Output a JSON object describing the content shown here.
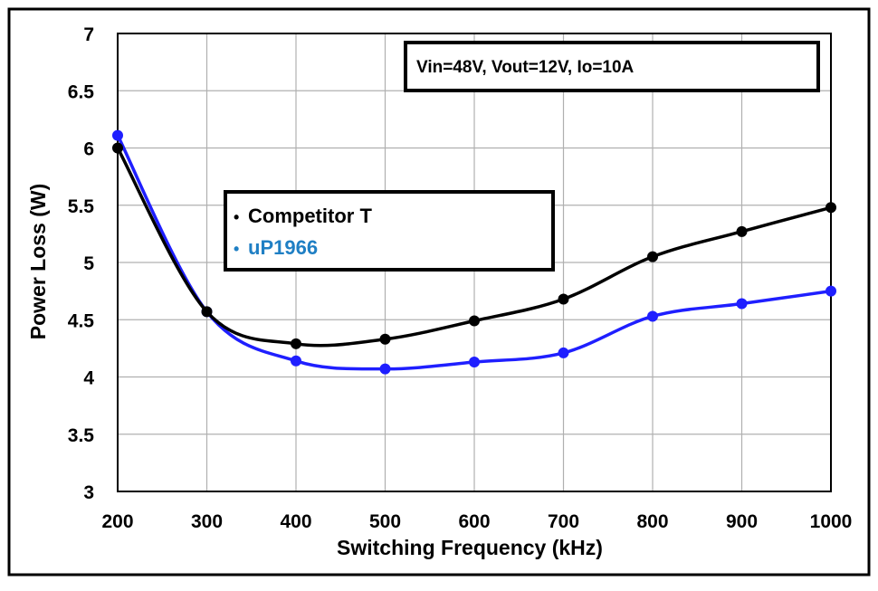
{
  "chart_data": {
    "type": "line",
    "xlabel": "Switching Frequency (kHz)",
    "ylabel": "Power Loss (W)",
    "annotation": "Vin=48V, Vout=12V, Io=10A",
    "xlim": [
      200,
      1000
    ],
    "ylim": [
      3,
      7
    ],
    "x_ticks": [
      200,
      300,
      400,
      500,
      600,
      700,
      800,
      900,
      1000
    ],
    "y_ticks": [
      3,
      3.5,
      4,
      4.5,
      5,
      5.5,
      6,
      6.5,
      7
    ],
    "grid": true,
    "legend_position": "left, upper-middle",
    "series": [
      {
        "name": "Competitor T",
        "color": "#000000",
        "x": [
          200,
          300,
          400,
          500,
          600,
          700,
          800,
          900,
          1000
        ],
        "y": [
          6.0,
          4.57,
          4.29,
          4.33,
          4.49,
          4.68,
          5.05,
          5.27,
          5.48
        ]
      },
      {
        "name": "uP1966",
        "color": "#1f1fff",
        "legend_color": "#1f7fc4",
        "x": [
          200,
          300,
          400,
          500,
          600,
          700,
          800,
          900,
          1000
        ],
        "y": [
          6.11,
          4.57,
          4.14,
          4.07,
          4.13,
          4.21,
          4.53,
          4.64,
          4.75
        ]
      }
    ]
  }
}
